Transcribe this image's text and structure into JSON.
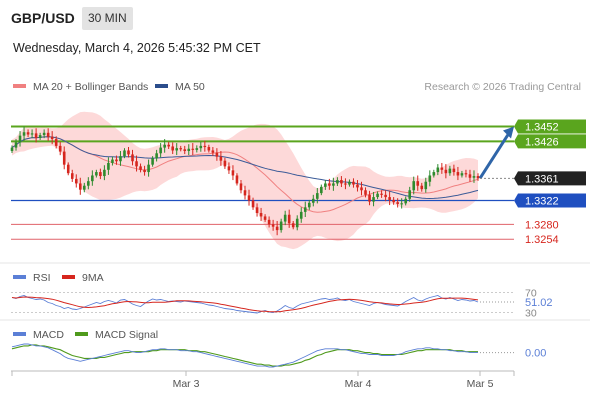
{
  "header": {
    "pair": "GBP/USD",
    "timeframe": "30 MIN",
    "datetime": "Wednesday, March 4, 2026 5:45:32 PM CET"
  },
  "legend": {
    "items": [
      {
        "label": "MA 20 + Bollinger Bands",
        "color": "#f08080"
      },
      {
        "label": "MA 50",
        "color": "#2b4d8c"
      }
    ],
    "credit": "Research © 2026 Trading Central"
  },
  "colors": {
    "up_candle": "#2e8b2e",
    "down_candle": "#d6261e",
    "band_fill": "#fdd9d9",
    "ma20": "#f08080",
    "ma50": "#3b5b98",
    "resistance": "#5aa51e",
    "pivot": "#1f4fc0",
    "support": "#e0626a",
    "arrow": "#2f65a8",
    "rsi": "#5b7fd6",
    "rsi_ma": "#d6261e",
    "macd": "#5b7fd6",
    "macd_signal": "#4f9a1c"
  },
  "price_levels": [
    {
      "value": 1.3452,
      "label": "1.3452",
      "kind": "resistance"
    },
    {
      "value": 1.3426,
      "label": "1.3426",
      "kind": "resistance"
    },
    {
      "value": 1.3361,
      "label": "1.3361",
      "kind": "last"
    },
    {
      "value": 1.3322,
      "label": "1.3322",
      "kind": "pivot"
    },
    {
      "value": 1.328,
      "label": "1.3280",
      "kind": "support"
    },
    {
      "value": 1.3254,
      "label": "1.3254",
      "kind": "support"
    }
  ],
  "rsi_panel": {
    "legend": [
      {
        "label": "RSI",
        "color": "#5b7fd6"
      },
      {
        "label": "9MA",
        "color": "#d6261e"
      }
    ],
    "levels": [
      {
        "value": 70,
        "label": "70"
      },
      {
        "value": 30,
        "label": "30"
      }
    ],
    "current_label": "51.02"
  },
  "macd_panel": {
    "legend": [
      {
        "label": "MACD",
        "color": "#5b7fd6"
      },
      {
        "label": "MACD Signal",
        "color": "#4f9a1c"
      }
    ],
    "current_label": "0.00"
  },
  "chart_data": {
    "type": "candlestick",
    "x_ticks": [
      "Mar 3",
      "Mar 4",
      "Mar 5"
    ],
    "ylim": [
      1.3235,
      1.346
    ],
    "close": [
      1.3415,
      1.3424,
      1.3436,
      1.3442,
      1.3438,
      1.344,
      1.3432,
      1.3437,
      1.3441,
      1.3434,
      1.343,
      1.3418,
      1.3408,
      1.3385,
      1.337,
      1.336,
      1.3352,
      1.3341,
      1.3348,
      1.3356,
      1.3366,
      1.3372,
      1.3365,
      1.3376,
      1.3388,
      1.3394,
      1.3391,
      1.34,
      1.341,
      1.3403,
      1.3391,
      1.3382,
      1.3376,
      1.3372,
      1.3385,
      1.3396,
      1.3405,
      1.3415,
      1.342,
      1.3417,
      1.341,
      1.3414,
      1.3412,
      1.3409,
      1.3413,
      1.3411,
      1.3414,
      1.3418,
      1.3416,
      1.341,
      1.3406,
      1.3399,
      1.3392,
      1.3382,
      1.3375,
      1.3366,
      1.3352,
      1.334,
      1.3331,
      1.3322,
      1.331,
      1.33,
      1.3294,
      1.3288,
      1.328,
      1.3276,
      1.327,
      1.3285,
      1.3297,
      1.3282,
      1.3275,
      1.329,
      1.3302,
      1.331,
      1.3318,
      1.3325,
      1.3335,
      1.3346,
      1.3352,
      1.3348,
      1.3352,
      1.3358,
      1.3352,
      1.335,
      1.3355,
      1.335,
      1.3345,
      1.334,
      1.3332,
      1.332,
      1.3328,
      1.3334,
      1.3332,
      1.3328,
      1.3323,
      1.3319,
      1.3316,
      1.3317,
      1.3325,
      1.334,
      1.3356,
      1.3348,
      1.3342,
      1.3355,
      1.3366,
      1.3372,
      1.338,
      1.3376,
      1.337,
      1.3378,
      1.3372,
      1.3366,
      1.337,
      1.3368,
      1.3362,
      1.3365,
      1.3361
    ],
    "rsi": [
      60,
      58,
      62,
      64,
      60,
      58,
      56,
      57,
      55,
      50,
      48,
      44,
      42,
      38,
      40,
      37,
      36,
      38,
      41,
      44,
      47,
      50,
      48,
      52,
      54,
      52,
      49,
      55,
      56,
      52,
      47,
      44,
      42,
      48,
      53,
      57,
      55,
      56,
      54,
      52,
      53,
      52,
      51,
      53,
      52,
      51,
      50,
      49,
      47,
      45,
      44,
      42,
      40,
      38,
      37,
      36,
      34,
      33,
      32,
      31,
      30,
      29,
      32,
      34,
      31,
      30,
      33,
      38,
      44,
      40,
      38,
      43,
      47,
      49,
      51,
      53,
      55,
      57,
      58,
      56,
      57,
      59,
      55,
      54,
      56,
      52,
      50,
      48,
      46,
      44,
      48,
      50,
      48,
      46,
      45,
      44,
      43,
      47,
      52,
      56,
      60,
      55,
      53,
      57,
      60,
      62,
      64,
      59,
      57,
      60,
      57,
      54,
      56,
      55,
      53,
      54,
      51.02
    ],
    "macd": [
      0.0006,
      0.0007,
      0.0008,
      0.0009,
      0.0009,
      0.0008,
      0.0007,
      0.0007,
      0.0006,
      0.0005,
      0.0003,
      0.0001,
      -0.0001,
      -0.0004,
      -0.0006,
      -0.0007,
      -0.0008,
      -0.0009,
      -0.0008,
      -0.0007,
      -0.0006,
      -0.0005,
      -0.0004,
      -0.0003,
      -0.0002,
      -0.0001,
      0.0,
      0.0001,
      0.0002,
      0.0002,
      0.0001,
      0.0,
      0.0,
      0.0001,
      0.0002,
      0.0003,
      0.0003,
      0.0004,
      0.0004,
      0.0003,
      0.0003,
      0.0003,
      0.0002,
      0.0002,
      0.0002,
      0.0001,
      0.0001,
      0.0,
      -0.0001,
      -0.0002,
      -0.0003,
      -0.0004,
      -0.0005,
      -0.0006,
      -0.0007,
      -0.0008,
      -0.0009,
      -0.001,
      -0.0011,
      -0.0012,
      -0.0013,
      -0.0014,
      -0.0014,
      -0.0014,
      -0.0015,
      -0.0015,
      -0.0014,
      -0.0013,
      -0.0012,
      -0.0011,
      -0.001,
      -0.0008,
      -0.0006,
      -0.0004,
      -0.0002,
      0.0,
      0.0002,
      0.0003,
      0.0004,
      0.0004,
      0.0004,
      0.0004,
      0.0003,
      0.0003,
      0.0002,
      0.0001,
      0.0,
      -0.0001,
      -0.0001,
      -0.0002,
      -0.0002,
      -0.0002,
      -0.0003,
      -0.0003,
      -0.0003,
      -0.0003,
      -0.0002,
      -0.0001,
      0.0001,
      0.0002,
      0.0003,
      0.0004,
      0.0004,
      0.0005,
      0.0005,
      0.0004,
      0.0004,
      0.0003,
      0.0003,
      0.0002,
      0.0002,
      0.0001,
      0.0001,
      0.0001,
      0.0,
      0.0,
      0.0
    ],
    "macd_signal": [
      0.0004,
      0.0005,
      0.0006,
      0.0007,
      0.0007,
      0.0008,
      0.0008,
      0.0007,
      0.0007,
      0.0006,
      0.0005,
      0.0004,
      0.0003,
      0.0001,
      -0.0001,
      -0.0003,
      -0.0004,
      -0.0005,
      -0.0006,
      -0.0006,
      -0.0006,
      -0.0006,
      -0.0005,
      -0.0005,
      -0.0004,
      -0.0003,
      -0.0002,
      -0.0001,
      0.0,
      0.0,
      0.0001,
      0.0001,
      0.0001,
      0.0001,
      0.0001,
      0.0002,
      0.0002,
      0.0003,
      0.0003,
      0.0003,
      0.0003,
      0.0003,
      0.0003,
      0.0003,
      0.0002,
      0.0002,
      0.0002,
      0.0001,
      0.0001,
      0.0,
      -0.0001,
      -0.0002,
      -0.0003,
      -0.0004,
      -0.0005,
      -0.0006,
      -0.0007,
      -0.0008,
      -0.0009,
      -0.001,
      -0.0011,
      -0.0012,
      -0.0012,
      -0.0013,
      -0.0013,
      -0.0014,
      -0.0014,
      -0.0014,
      -0.0013,
      -0.0013,
      -0.0012,
      -0.0011,
      -0.001,
      -0.0008,
      -0.0007,
      -0.0005,
      -0.0003,
      -0.0002,
      0.0,
      0.0001,
      0.0002,
      0.0003,
      0.0003,
      0.0003,
      0.0003,
      0.0002,
      0.0002,
      0.0001,
      0.0,
      0.0,
      -0.0001,
      -0.0001,
      -0.0002,
      -0.0002,
      -0.0002,
      -0.0002,
      -0.0002,
      -0.0002,
      -0.0001,
      0.0,
      0.0001,
      0.0002,
      0.0002,
      0.0003,
      0.0003,
      0.0003,
      0.0003,
      0.0003,
      0.0003,
      0.0003,
      0.0002,
      0.0002,
      0.0002,
      0.0001,
      0.0001,
      0.0001,
      0.0001
    ],
    "projection": {
      "from": 1.3361,
      "to": 1.3452
    }
  }
}
